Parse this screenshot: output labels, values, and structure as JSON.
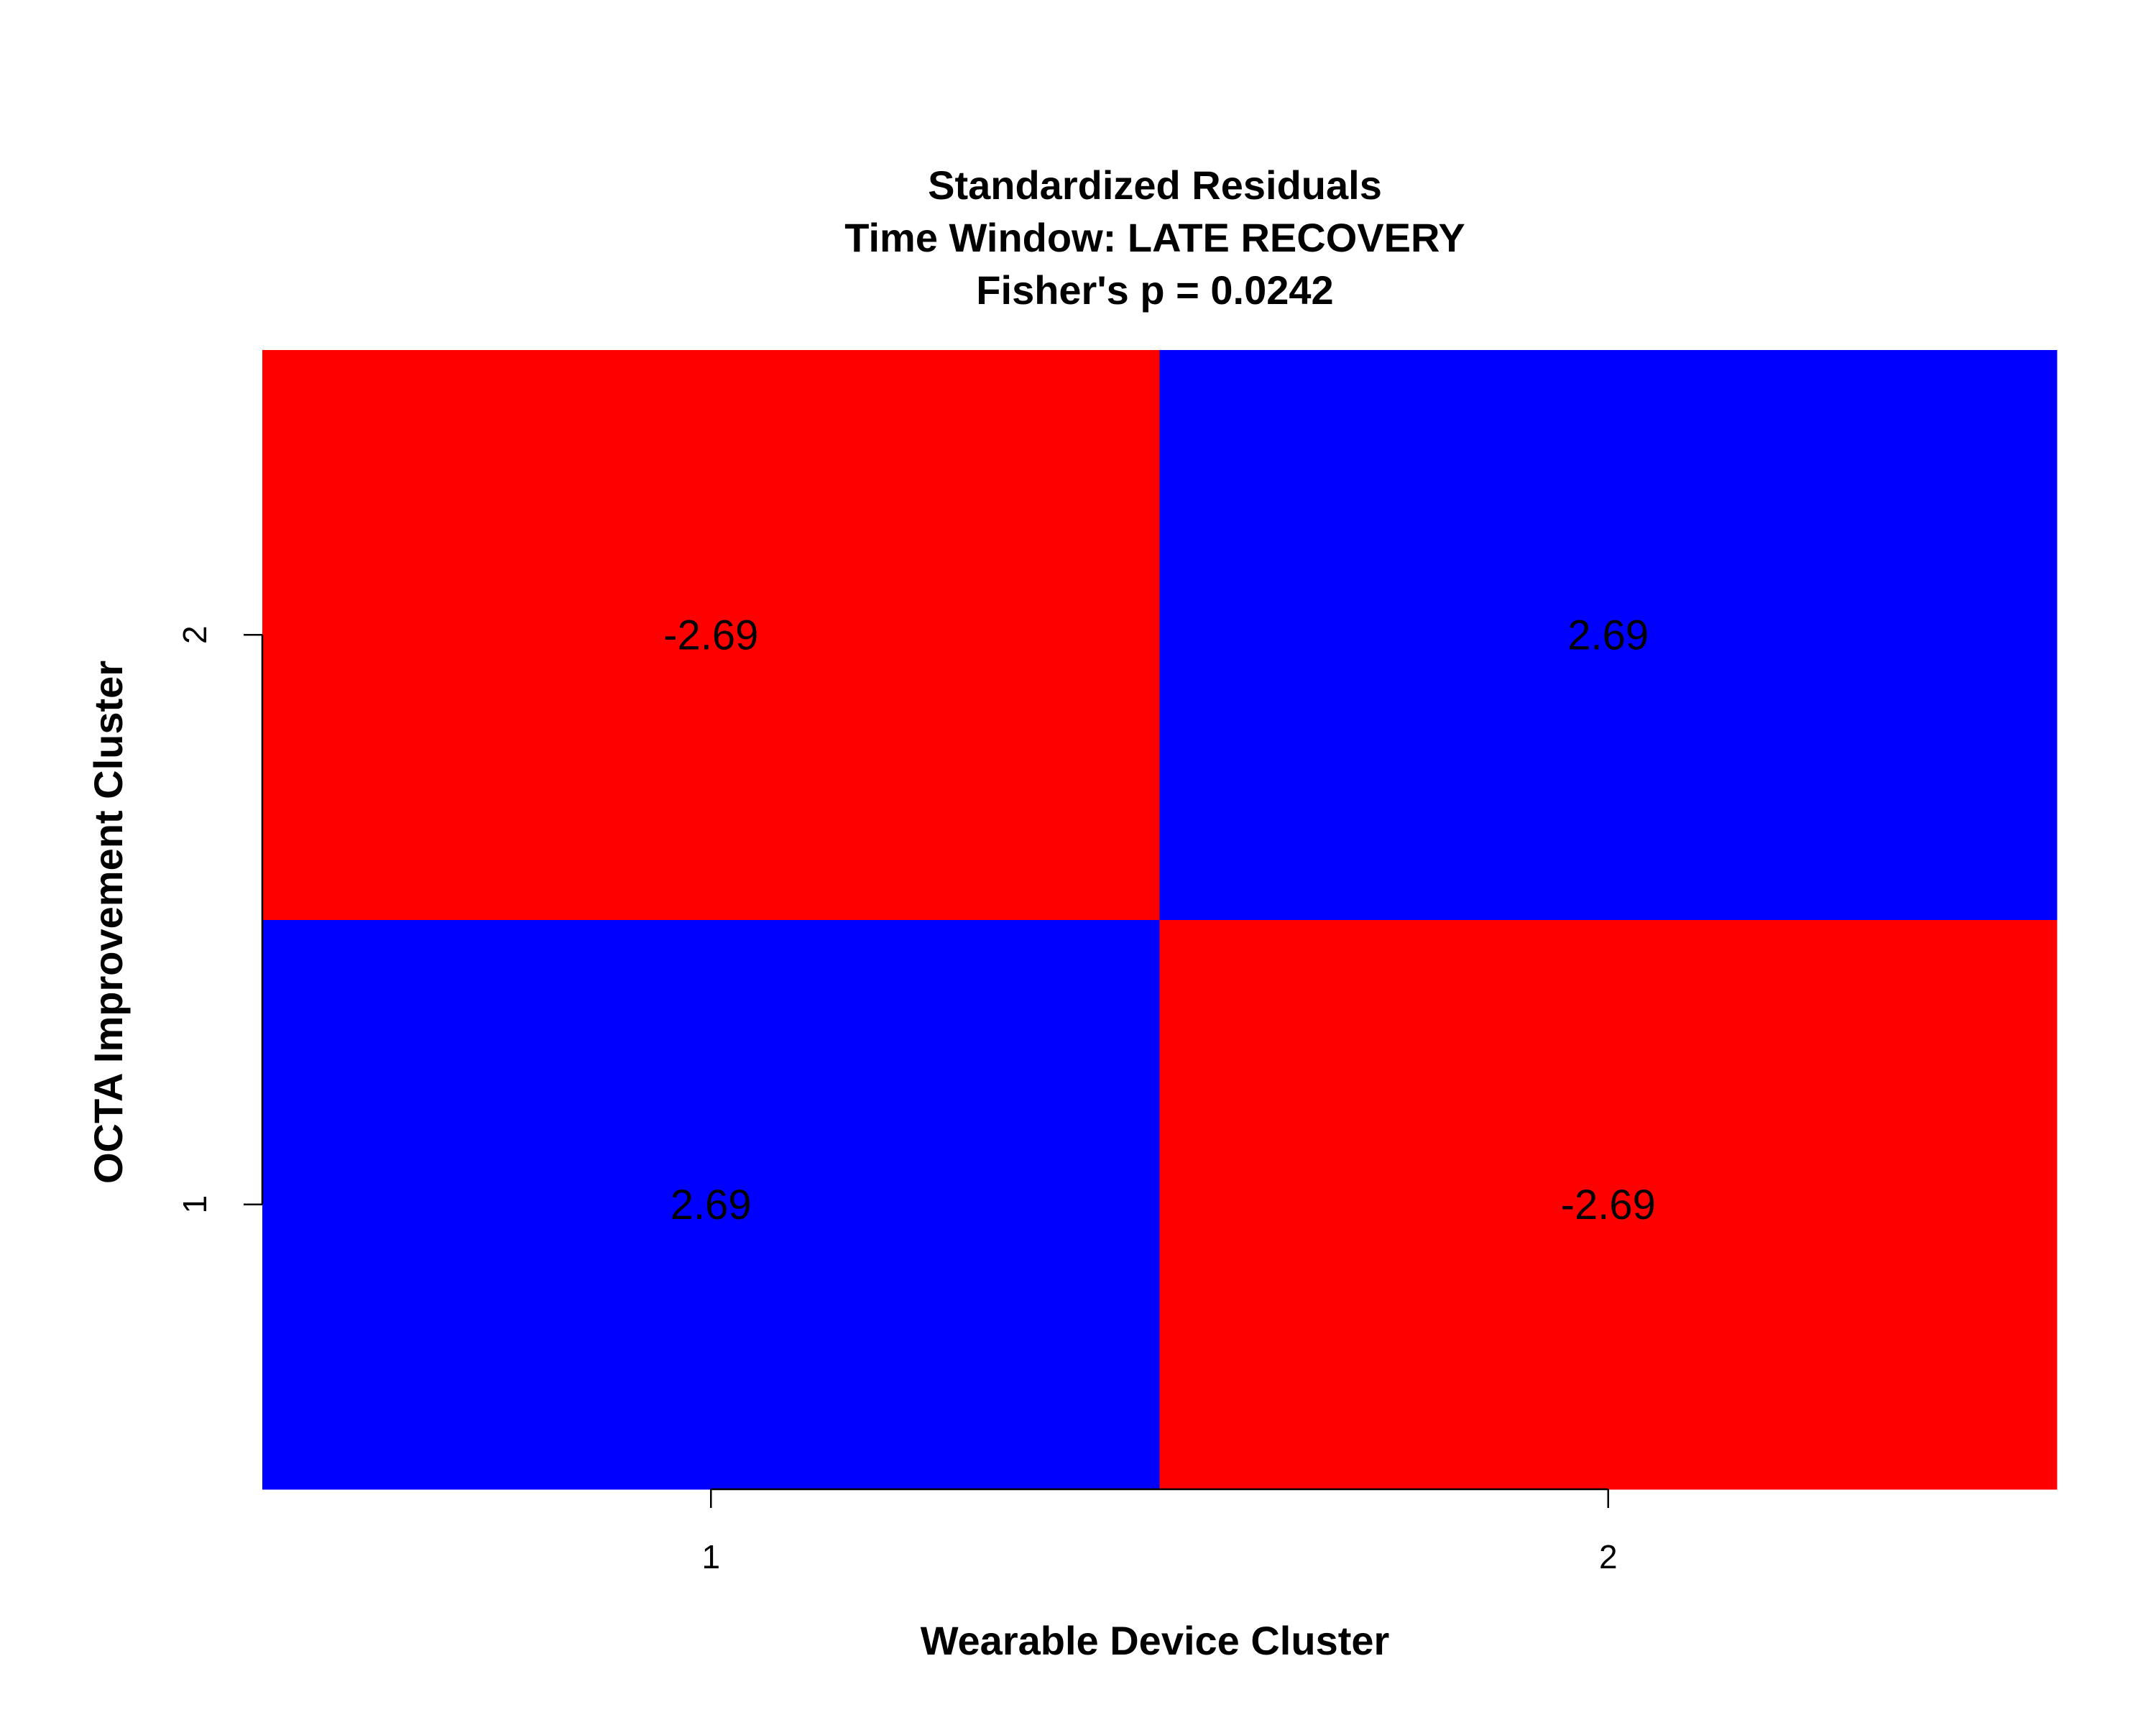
{
  "chart_data": {
    "type": "heatmap",
    "title_lines": [
      "Standardized Residuals",
      "Time Window: LATE RECOVERY",
      "Fisher's p = 0.0242"
    ],
    "xlabel": "Wearable Device Cluster",
    "ylabel": "OCTA Improvement Cluster",
    "x_categories": [
      "1",
      "2"
    ],
    "y_categories": [
      "1",
      "2"
    ],
    "cells": [
      {
        "x": "1",
        "y": "1",
        "value": 2.69,
        "label": "2.69",
        "color": "#0000ff"
      },
      {
        "x": "2",
        "y": "1",
        "value": -2.69,
        "label": "-2.69",
        "color": "#ff0000"
      },
      {
        "x": "1",
        "y": "2",
        "value": -2.69,
        "label": "-2.69",
        "color": "#ff0000"
      },
      {
        "x": "2",
        "y": "2",
        "value": 2.69,
        "label": "2.69",
        "color": "#0000ff"
      }
    ],
    "colors": {
      "positive": "#0000ff",
      "negative": "#ff0000"
    },
    "grid": false,
    "legend": "none"
  }
}
